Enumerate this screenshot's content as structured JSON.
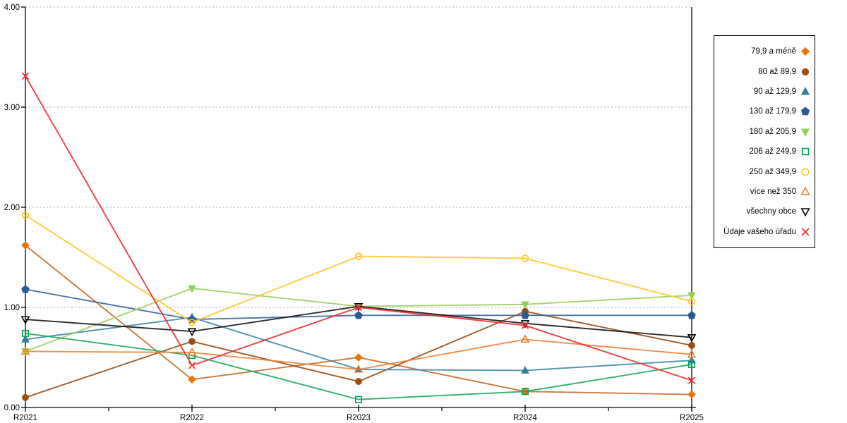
{
  "chart_data": {
    "type": "line",
    "title": "",
    "xlabel": "",
    "ylabel": "",
    "categories": [
      "R2021",
      "R2022",
      "R2023",
      "R2024",
      "R2025"
    ],
    "ylim": [
      0,
      4
    ],
    "ytick_labels": [
      "0.00",
      "1.00",
      "2.00",
      "3.00",
      "4.00"
    ],
    "grid": "horizontal-dotted",
    "gridline_color": "#ABABAB",
    "axis_color": "#000000",
    "legend_position": "right",
    "series": [
      {
        "name": "79,9 a méně",
        "marker": "diamond",
        "filled": true,
        "color": "#E8740C",
        "line_color": "#C96B29",
        "values": [
          1.62,
          0.28,
          0.5,
          0.16,
          0.13
        ]
      },
      {
        "name": "80 až 89,9",
        "marker": "circle",
        "filled": true,
        "color": "#9C4E10",
        "line_color": "#9C4E10",
        "values": [
          0.1,
          0.66,
          0.26,
          0.96,
          0.62
        ]
      },
      {
        "name": "90 až 129,9",
        "marker": "triangle-up",
        "filled": true,
        "color": "#2F7F9D",
        "line_color": "#3E88A5",
        "values": [
          0.68,
          0.9,
          0.38,
          0.37,
          0.47
        ]
      },
      {
        "name": "130 až 179,9",
        "marker": "pentagon",
        "filled": true,
        "color": "#2B5A92",
        "line_color": "#3A659B",
        "values": [
          1.18,
          0.88,
          0.92,
          0.92,
          0.92
        ]
      },
      {
        "name": "180 až 205,9",
        "marker": "triangle-down",
        "filled": true,
        "color": "#92D050",
        "line_color": "#9CCF5E",
        "values": [
          0.56,
          1.19,
          1.01,
          1.03,
          1.12
        ]
      },
      {
        "name": "206 až 249,9",
        "marker": "square",
        "filled": false,
        "color": "#00A651",
        "line_color": "#1BAA5F",
        "values": [
          0.74,
          0.52,
          0.08,
          0.16,
          0.43
        ]
      },
      {
        "name": "250 až 349,9",
        "marker": "circle",
        "filled": false,
        "color": "#FFC41E",
        "line_color": "#FEC52E",
        "values": [
          1.92,
          0.85,
          1.51,
          1.49,
          1.06
        ]
      },
      {
        "name": "více než 350",
        "marker": "triangle-up",
        "filled": false,
        "color": "#F07E2E",
        "line_color": "#F18438",
        "values": [
          0.56,
          0.55,
          0.38,
          0.68,
          0.53
        ]
      },
      {
        "name": "všechny obce",
        "marker": "triangle-down",
        "filled": false,
        "color": "#000000",
        "line_color": "#141414",
        "values": [
          0.88,
          0.76,
          1.01,
          0.84,
          0.7
        ]
      },
      {
        "name": "Údaje vašeho úřadu",
        "marker": "x",
        "filled": false,
        "color": "#EE2B2E",
        "line_color": "#F12A30",
        "values": [
          3.31,
          0.42,
          1.0,
          0.82,
          0.27
        ]
      }
    ]
  }
}
